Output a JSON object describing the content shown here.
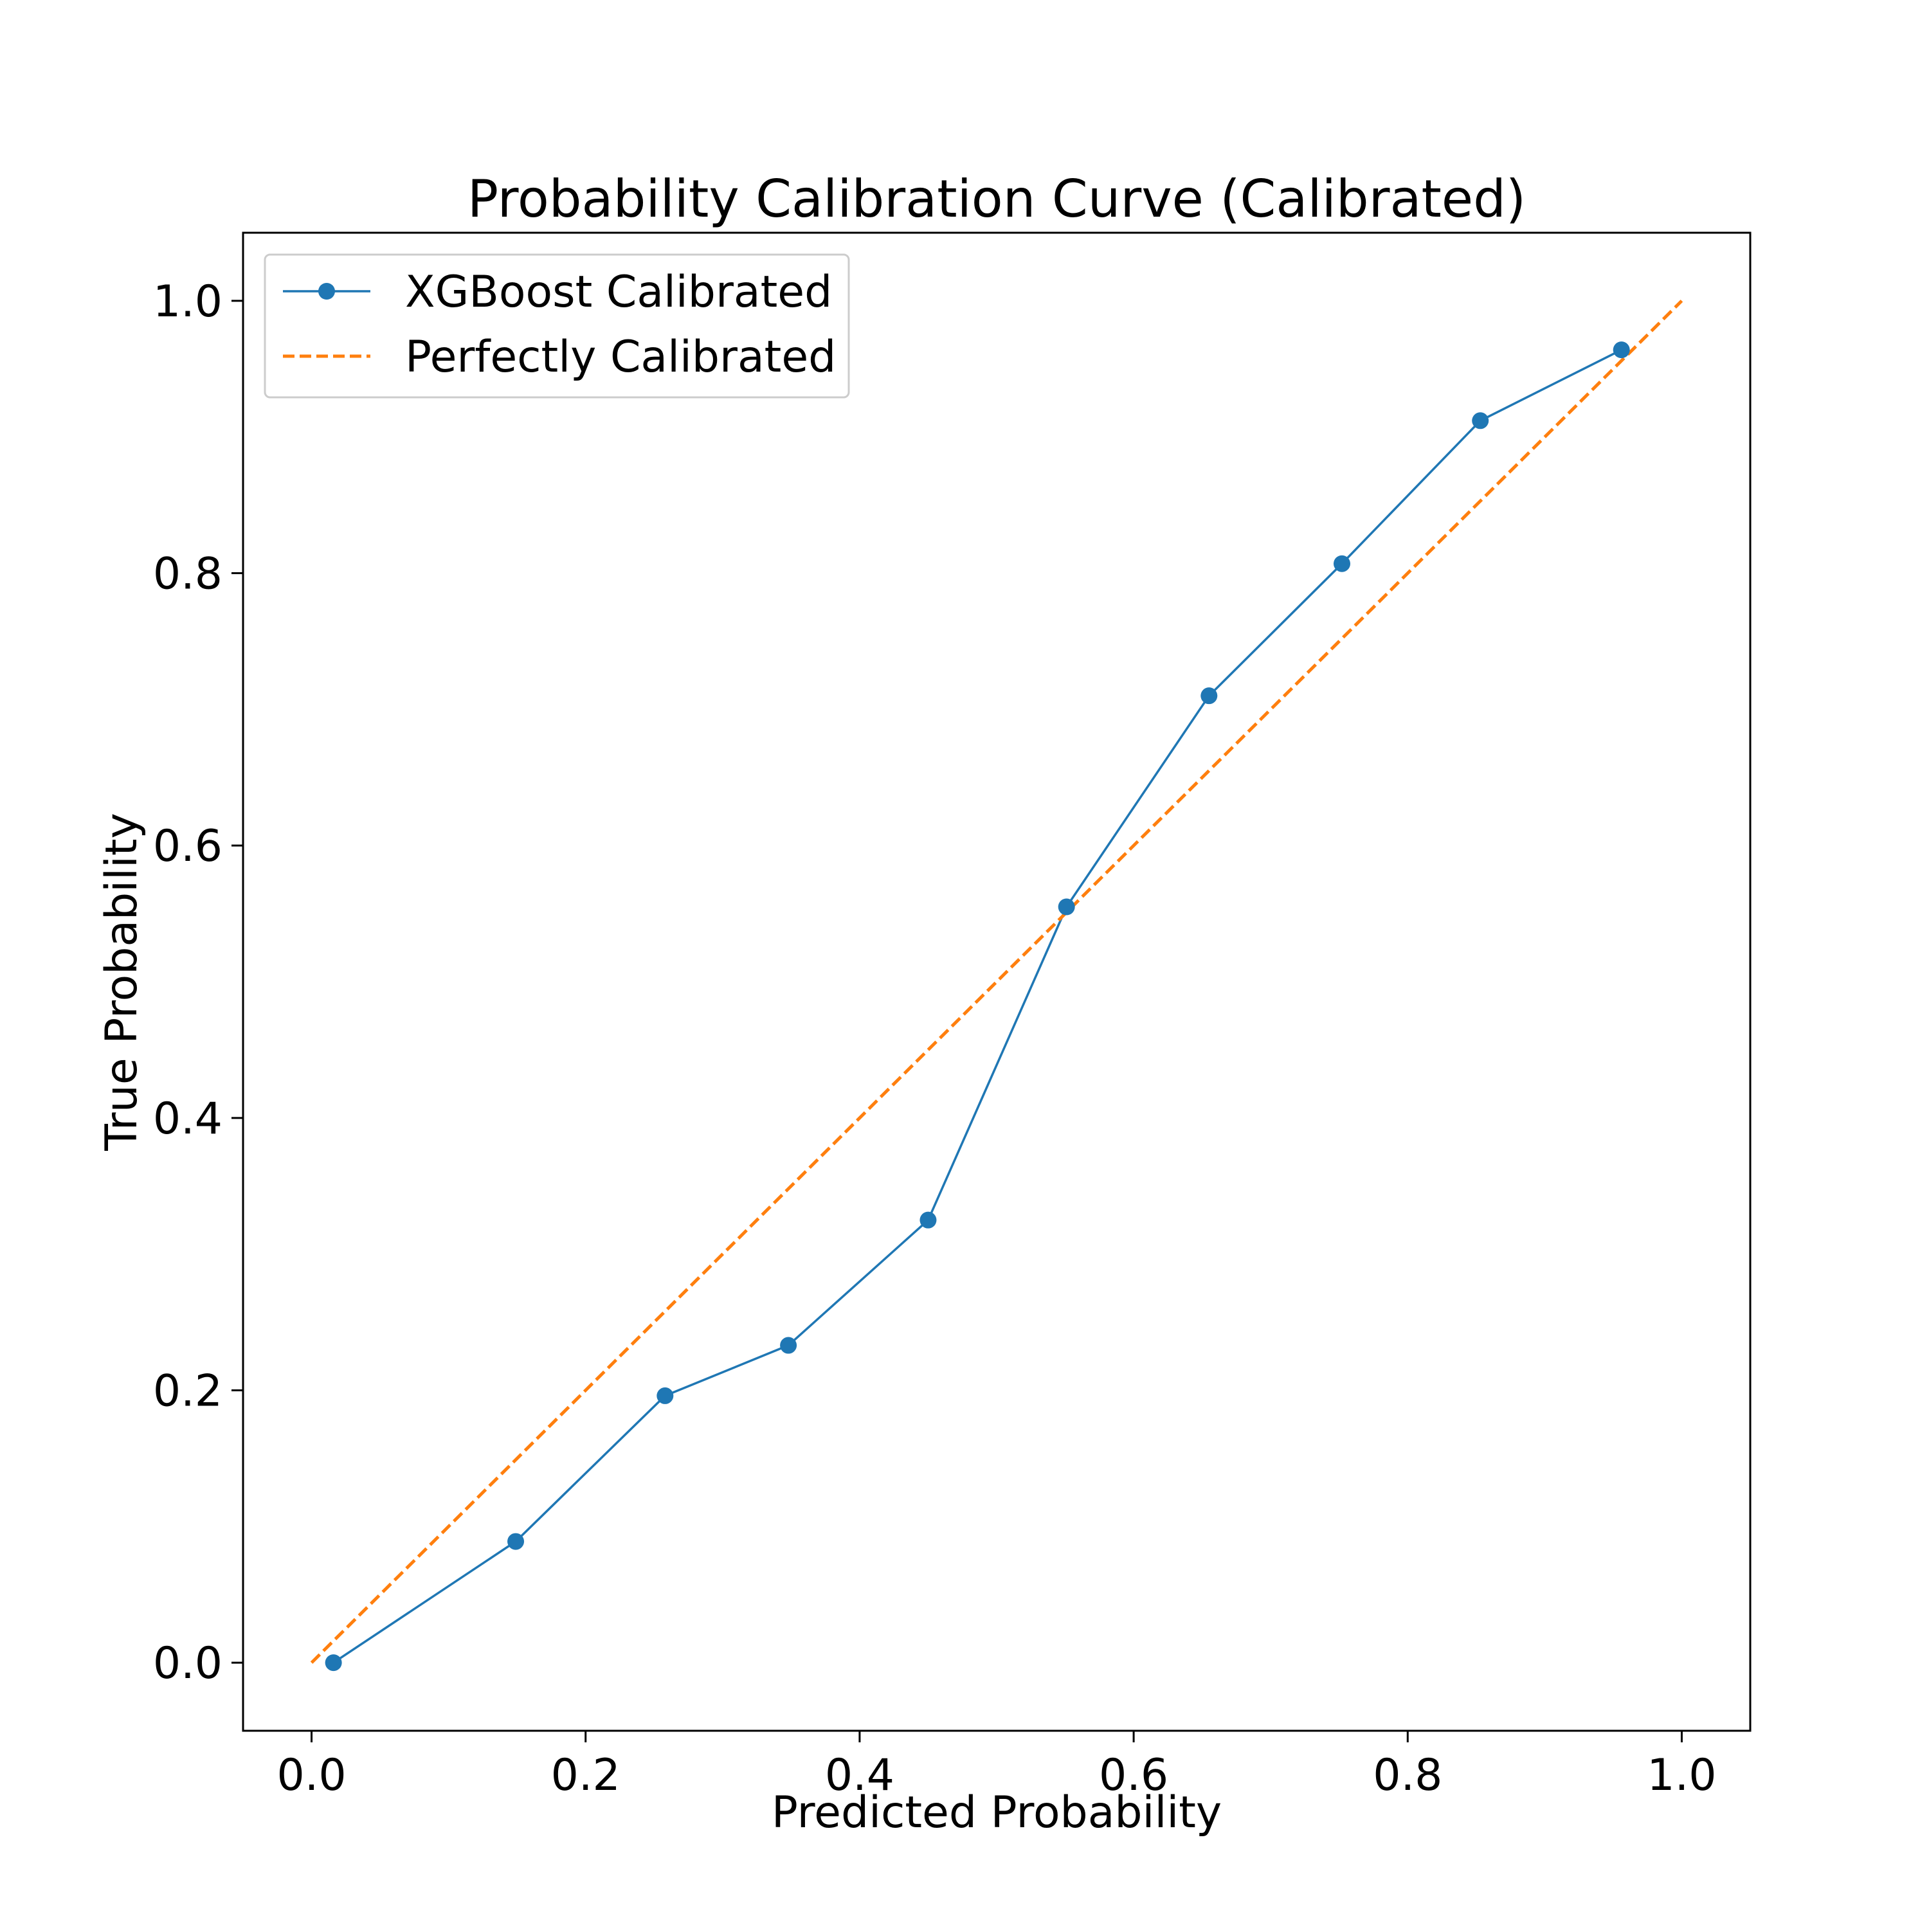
{
  "chart_data": {
    "type": "line",
    "title": "Probability Calibration Curve (Calibrated)",
    "xlabel": "Predicted Probability",
    "ylabel": "True Probability",
    "xlim": [
      -0.05,
      1.05
    ],
    "ylim": [
      -0.05,
      1.05
    ],
    "x_ticks": [
      "0.0",
      "0.2",
      "0.4",
      "0.6",
      "0.8",
      "1.0"
    ],
    "y_ticks": [
      "0.0",
      "0.2",
      "0.4",
      "0.6",
      "0.8",
      "1.0"
    ],
    "grid": false,
    "legend_position": "upper-left",
    "series": [
      {
        "name": "XGBoost Calibrated",
        "style": "solid-line-with-circle-markers",
        "color": "#1f77b4",
        "x": [
          0.016,
          0.149,
          0.258,
          0.348,
          0.45,
          0.551,
          0.655,
          0.752,
          0.853,
          0.956
        ],
        "y": [
          0.0,
          0.089,
          0.196,
          0.233,
          0.325,
          0.555,
          0.71,
          0.807,
          0.912,
          0.964
        ]
      },
      {
        "name": "Perfectly Calibrated",
        "style": "dashed-line",
        "color": "#ff7f0e",
        "x": [
          0.0,
          1.0
        ],
        "y": [
          0.0,
          1.0
        ]
      }
    ]
  }
}
